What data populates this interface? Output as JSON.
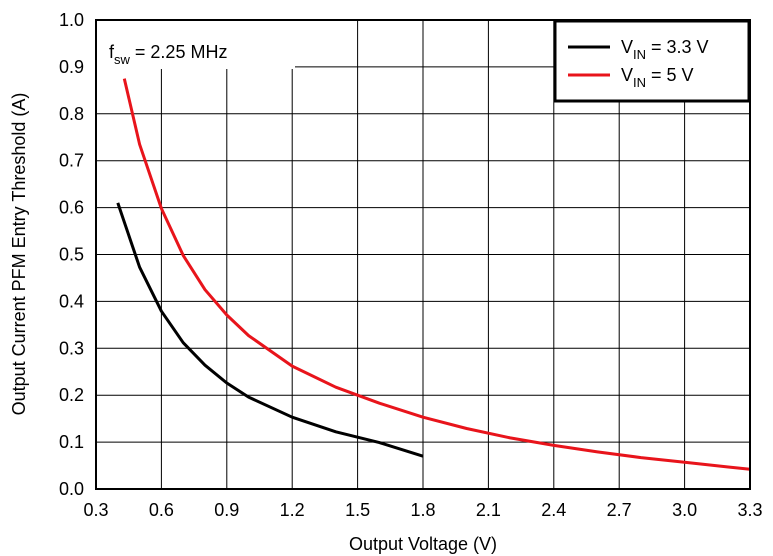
{
  "chart_data": {
    "type": "line",
    "xlabel": "Output Voltage (V)",
    "ylabel": "Output Current PFM Entry Threshold (A)",
    "xlim": [
      0.3,
      3.3
    ],
    "ylim": [
      0.0,
      1.0
    ],
    "xticks": [
      "0.3",
      "0.6",
      "0.9",
      "1.2",
      "1.5",
      "1.8",
      "2.1",
      "2.4",
      "2.7",
      "3.0",
      "3.3"
    ],
    "yticks": [
      "0.0",
      "0.1",
      "0.2",
      "0.3",
      "0.4",
      "0.5",
      "0.6",
      "0.7",
      "0.8",
      "0.9",
      "1.0"
    ],
    "grid": true,
    "legend_position": "top-right",
    "annotation": {
      "prefix": "f",
      "subscript": "sw",
      "text": " = 2.25 MHz"
    },
    "series": [
      {
        "name": "V_IN = 3.3 V",
        "legend_main": "V",
        "legend_sub": "IN",
        "legend_rest": " = 3.3 V",
        "color": "#000000",
        "x": [
          0.4,
          0.5,
          0.6,
          0.7,
          0.8,
          0.9,
          1.0,
          1.2,
          1.4,
          1.6,
          1.8
        ],
        "y": [
          0.61,
          0.473,
          0.379,
          0.312,
          0.264,
          0.226,
          0.196,
          0.153,
          0.122,
          0.099,
          0.07
        ]
      },
      {
        "name": "V_IN = 5 V",
        "legend_main": "V",
        "legend_sub": "IN",
        "legend_rest": " = 5 V",
        "color": "#e8141b",
        "x": [
          0.43,
          0.5,
          0.6,
          0.7,
          0.8,
          0.9,
          1.0,
          1.2,
          1.4,
          1.6,
          1.8,
          2.0,
          2.2,
          2.4,
          2.6,
          2.8,
          3.0,
          3.2,
          3.3
        ],
        "y": [
          0.875,
          0.735,
          0.598,
          0.498,
          0.425,
          0.371,
          0.327,
          0.262,
          0.217,
          0.183,
          0.153,
          0.129,
          0.109,
          0.093,
          0.079,
          0.067,
          0.057,
          0.047,
          0.042
        ]
      }
    ]
  }
}
